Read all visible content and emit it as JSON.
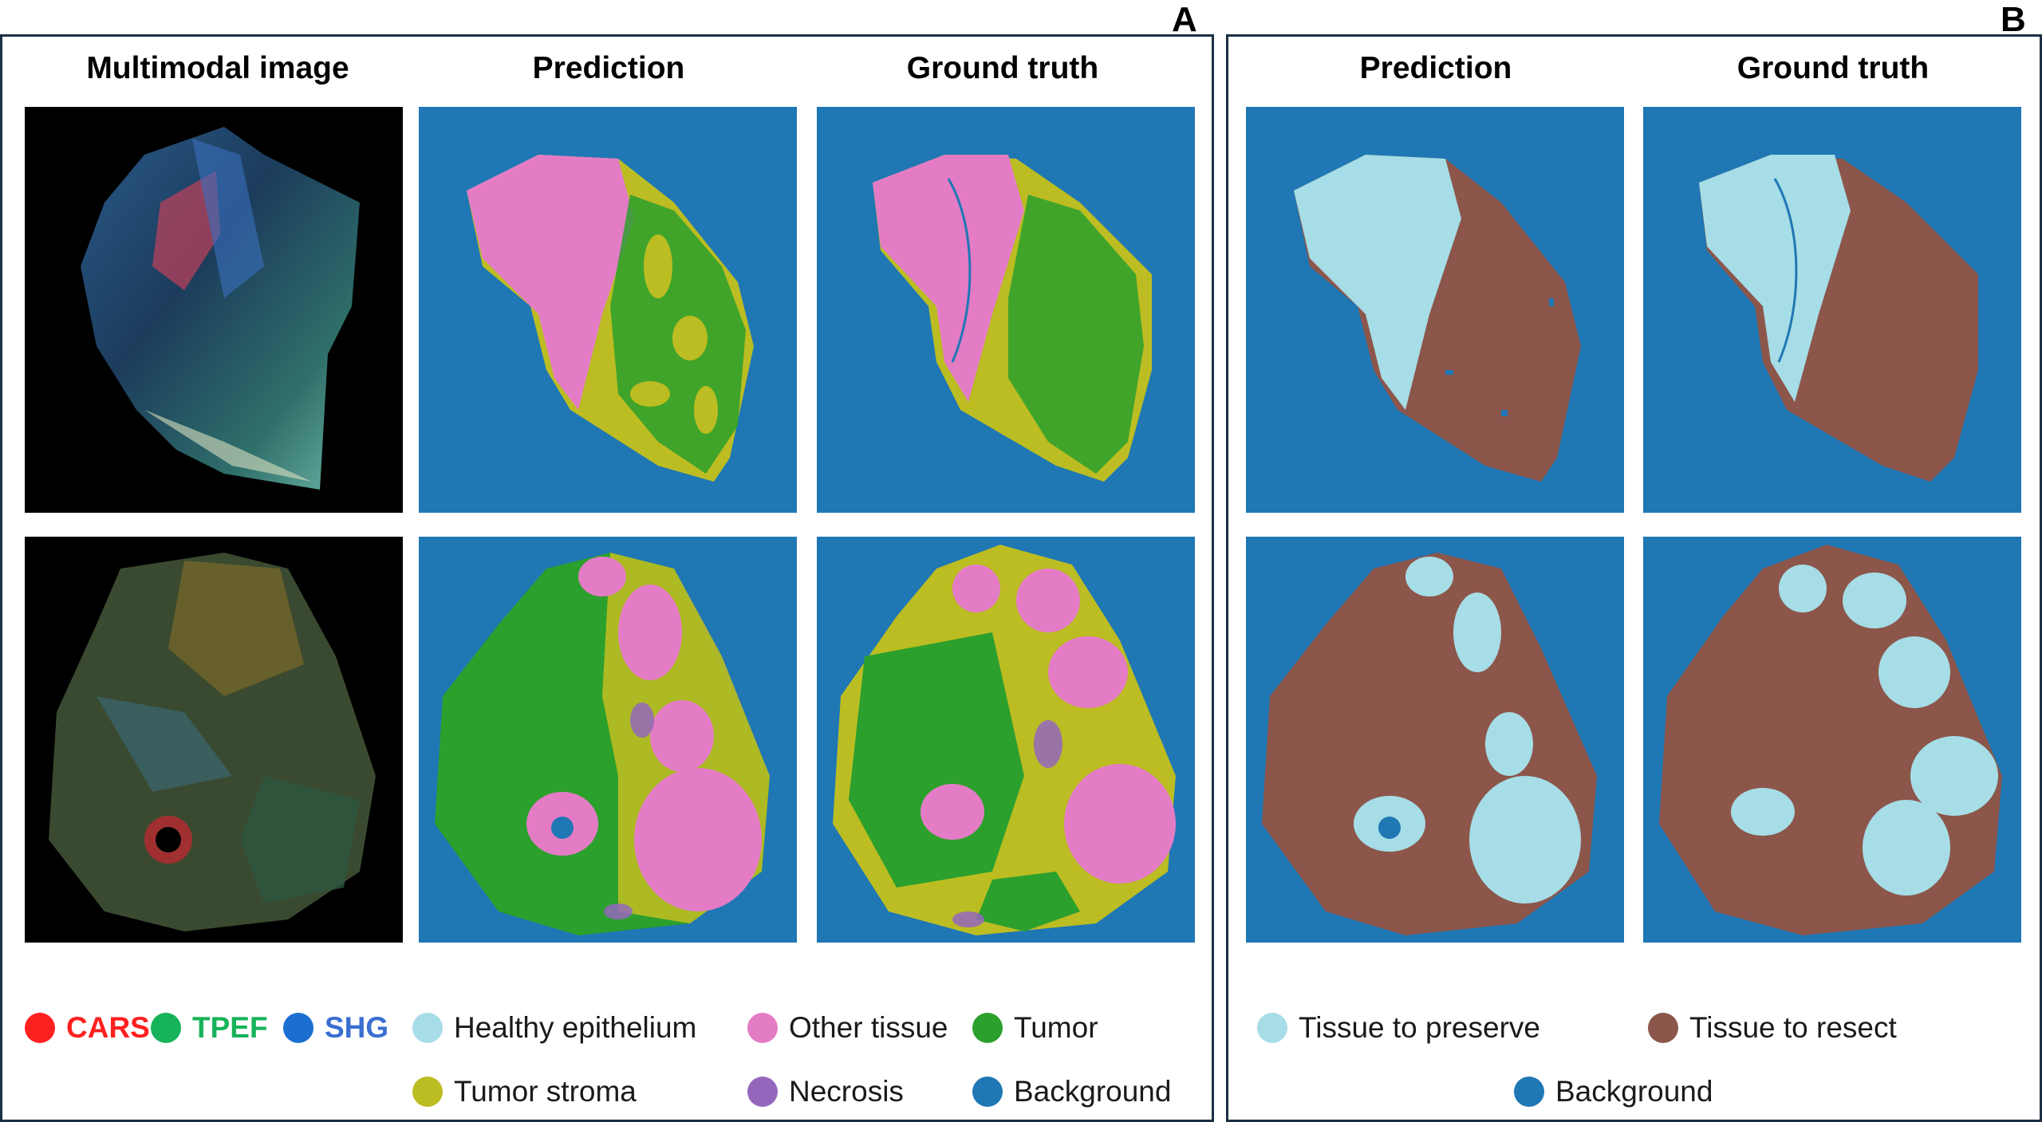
{
  "panel_a": {
    "letter": "A",
    "column_titles": [
      "Multimodal image",
      "Prediction",
      "Ground truth"
    ],
    "modality_legend": [
      {
        "label": "CARS",
        "color": "#ff2020"
      },
      {
        "label": "TPEF",
        "color": "#17b35a"
      },
      {
        "label": "SHG",
        "color": "#1a6fd1"
      }
    ],
    "class_legend": [
      {
        "label": "Healthy epithelium",
        "color": "#a6dde6"
      },
      {
        "label": "Other tissue",
        "color": "#e37cc5"
      },
      {
        "label": "Tumor",
        "color": "#2ca02c"
      },
      {
        "label": "Tumor stroma",
        "color": "#bcbd22"
      },
      {
        "label": "Necrosis",
        "color": "#9467bd"
      },
      {
        "label": "Background",
        "color": "#1f77b4"
      }
    ]
  },
  "panel_b": {
    "letter": "B",
    "column_titles": [
      "Prediction",
      "Ground truth"
    ],
    "class_legend": [
      {
        "label": "Tissue to preserve",
        "color": "#a6dde6"
      },
      {
        "label": "Tissue to resect",
        "color": "#8c564b"
      },
      {
        "label": "Background",
        "color": "#1f77b4"
      }
    ]
  },
  "colors": {
    "background": "#1f77b4",
    "other_tissue": "#e37cc5",
    "tumor": "#2ca02c",
    "tumor_stroma": "#bcbd22",
    "necrosis": "#9467bd",
    "preserve": "#a6dde6",
    "resect": "#8c564b",
    "frame": "#1c2f45"
  }
}
